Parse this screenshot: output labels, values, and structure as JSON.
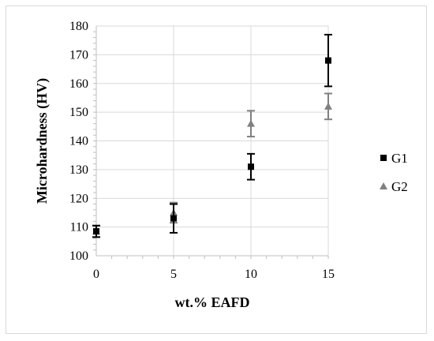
{
  "chart_data": {
    "type": "scatter",
    "title": "",
    "xlabel": "wt.% EAFD",
    "ylabel": "Microhardness  (HV)",
    "xlim": [
      0,
      15
    ],
    "ylim": [
      100,
      180
    ],
    "x_ticks": [
      "0",
      "5",
      "10",
      "15"
    ],
    "y_ticks": [
      "100",
      "110",
      "120",
      "130",
      "140",
      "150",
      "160",
      "170",
      "180"
    ],
    "grid": true,
    "legend_position": "right",
    "series": [
      {
        "name": "G1",
        "marker": "square",
        "color": "#000000",
        "x": [
          0,
          5,
          10,
          15
        ],
        "y": [
          108.5,
          113,
          131,
          168
        ],
        "error": [
          2,
          5,
          4.5,
          9
        ]
      },
      {
        "name": "G2",
        "marker": "triangle",
        "color": "#808080",
        "x": [
          0,
          5,
          10,
          15
        ],
        "y": [
          108.5,
          115,
          146,
          152
        ],
        "error": [
          2,
          3.5,
          4.5,
          4.5
        ]
      }
    ]
  }
}
